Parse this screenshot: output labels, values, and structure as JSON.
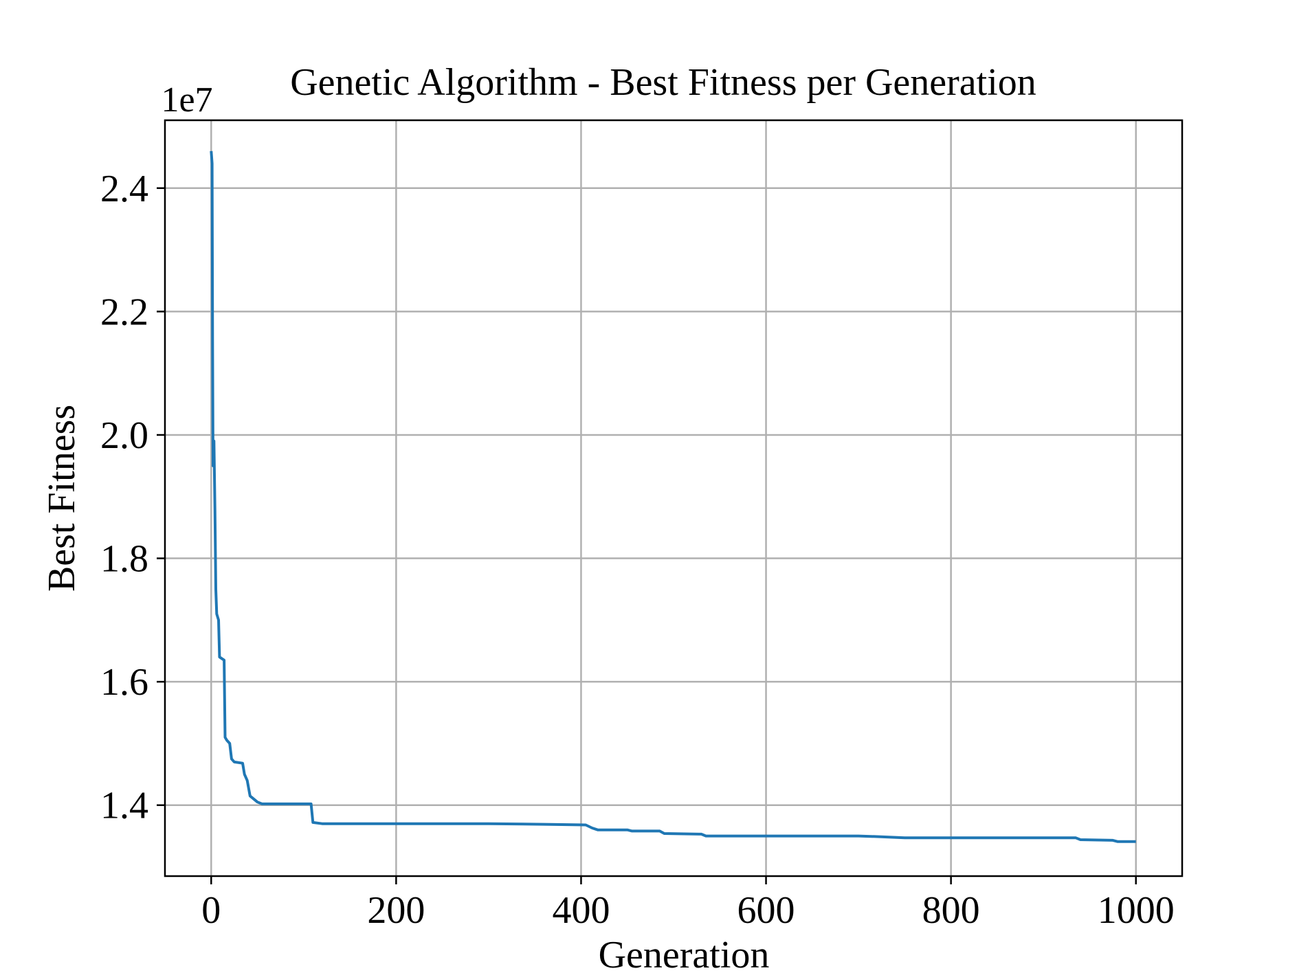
{
  "chart_data": {
    "type": "line",
    "title": "Genetic Algorithm - Best Fitness per Generation",
    "xlabel": "Generation",
    "ylabel": "Best Fitness",
    "y_offset_label": "1e7",
    "xlim": [
      -50,
      1050
    ],
    "ylim": [
      12.85,
      25.1
    ],
    "y_scale_factor": 10000000,
    "grid": true,
    "x_ticks": [
      0,
      200,
      400,
      600,
      800,
      1000
    ],
    "x_tick_labels": [
      "0",
      "200",
      "400",
      "600",
      "800",
      "1000"
    ],
    "y_ticks": [
      14.0,
      16.0,
      18.0,
      20.0,
      22.0,
      24.0
    ],
    "y_tick_labels": [
      "1.4",
      "1.6",
      "1.8",
      "2.0",
      "2.2",
      "2.4"
    ],
    "series": [
      {
        "name": "Best Fitness",
        "color": "#1f77b4",
        "points": [
          [
            0,
            24.6
          ],
          [
            1,
            24.4
          ],
          [
            1.5,
            21.5
          ],
          [
            2,
            19.5
          ],
          [
            3,
            19.9
          ],
          [
            4,
            18.8
          ],
          [
            5,
            17.5
          ],
          [
            6,
            17.1
          ],
          [
            8,
            17.0
          ],
          [
            9,
            16.4
          ],
          [
            14,
            16.35
          ],
          [
            15,
            15.1
          ],
          [
            17,
            15.05
          ],
          [
            20,
            15.0
          ],
          [
            22,
            14.75
          ],
          [
            25,
            14.7
          ],
          [
            34,
            14.68
          ],
          [
            36,
            14.5
          ],
          [
            39,
            14.4
          ],
          [
            42,
            14.15
          ],
          [
            46,
            14.1
          ],
          [
            50,
            14.05
          ],
          [
            55,
            14.02
          ],
          [
            108,
            14.02
          ],
          [
            110,
            13.72
          ],
          [
            120,
            13.7
          ],
          [
            300,
            13.7
          ],
          [
            360,
            13.69
          ],
          [
            405,
            13.68
          ],
          [
            412,
            13.63
          ],
          [
            418,
            13.6
          ],
          [
            450,
            13.6
          ],
          [
            455,
            13.58
          ],
          [
            485,
            13.58
          ],
          [
            490,
            13.54
          ],
          [
            530,
            13.53
          ],
          [
            535,
            13.5
          ],
          [
            700,
            13.5
          ],
          [
            720,
            13.49
          ],
          [
            750,
            13.47
          ],
          [
            935,
            13.47
          ],
          [
            940,
            13.44
          ],
          [
            975,
            13.43
          ],
          [
            980,
            13.41
          ],
          [
            1000,
            13.41
          ]
        ]
      }
    ]
  }
}
